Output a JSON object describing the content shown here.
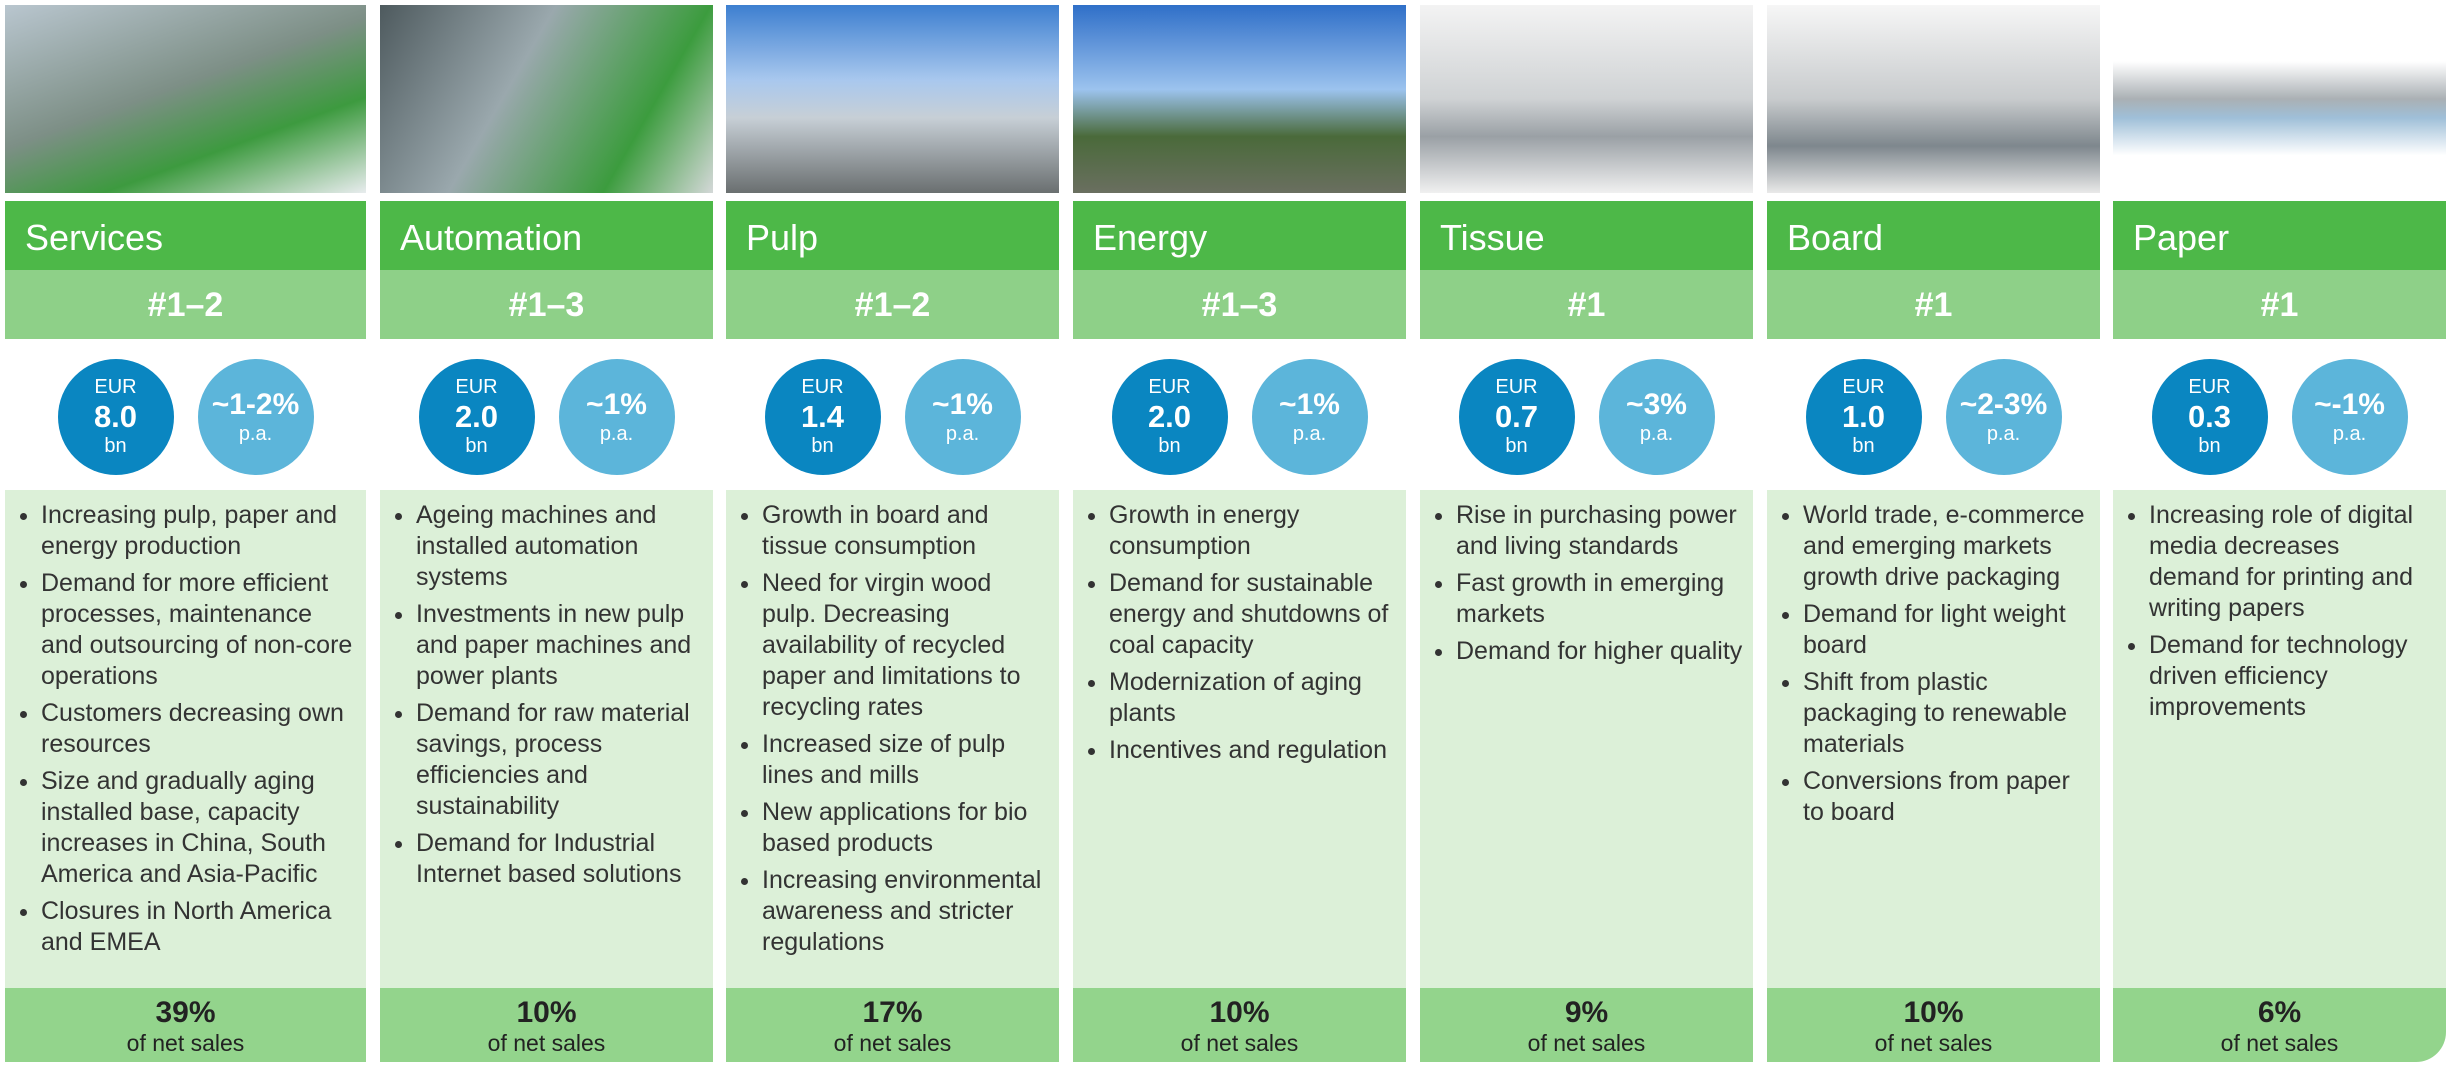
{
  "columns": [
    {
      "name": "Services",
      "rank": "#1–2",
      "currency": "EUR",
      "size": "8.0",
      "unit": "bn",
      "growth": "~1-2%",
      "growth_unit": "p.a.",
      "drivers": [
        "Increasing pulp, paper and energy production",
        "Demand for more efficient processes, maintenance and outsourcing of non-core operations",
        "Customers decreasing own resources",
        "Size and gradually aging installed base, capacity increases in China, South America and Asia-Pacific",
        "Closures in North America and EMEA"
      ],
      "share": "39%",
      "share_label": "of net sales"
    },
    {
      "name": "Automation",
      "rank": "#1–3",
      "currency": "EUR",
      "size": "2.0",
      "unit": "bn",
      "growth": "~1%",
      "growth_unit": "p.a.",
      "drivers": [
        "Ageing machines and installed automation systems",
        "Investments in new pulp and paper machines and power plants",
        "Demand for raw material savings, process efficiencies and sustainability",
        "Demand for Industrial Internet based solutions"
      ],
      "share": "10%",
      "share_label": "of net sales"
    },
    {
      "name": "Pulp",
      "rank": "#1–2",
      "currency": "EUR",
      "size": "1.4",
      "unit": "bn",
      "growth": "~1%",
      "growth_unit": "p.a.",
      "drivers": [
        "Growth in board and tissue consumption",
        "Need for virgin wood pulp. Decreasing availability of recycled paper and limitations to recycling rates",
        "Increased size of pulp lines and mills",
        "New applications for bio based products",
        "Increasing environmental awareness and stricter regulations"
      ],
      "share": "17%",
      "share_label": "of net sales"
    },
    {
      "name": "Energy",
      "rank": "#1–3",
      "currency": "EUR",
      "size": "2.0",
      "unit": "bn",
      "growth": "~1%",
      "growth_unit": "p.a.",
      "drivers": [
        "Growth in energy consumption",
        "Demand for sustainable energy and shutdowns of coal capacity",
        "Modernization of aging plants",
        "Incentives and regulation"
      ],
      "share": "10%",
      "share_label": "of net sales"
    },
    {
      "name": "Tissue",
      "rank": "#1",
      "currency": "EUR",
      "size": "0.7",
      "unit": "bn",
      "growth": "~3%",
      "growth_unit": "p.a.",
      "drivers": [
        "Rise in purchasing power and living standards",
        "Fast growth in emerging markets",
        "Demand for higher quality"
      ],
      "share": "9%",
      "share_label": "of net sales"
    },
    {
      "name": "Board",
      "rank": "#1",
      "currency": "EUR",
      "size": "1.0",
      "unit": "bn",
      "growth": "~2-3%",
      "growth_unit": "p.a.",
      "drivers": [
        "World trade, e-commerce and emerging markets growth drive packaging",
        "Demand for light weight board",
        "Shift from plastic packaging to renewable materials",
        "Conversions from paper to board"
      ],
      "share": "10%",
      "share_label": "of net sales"
    },
    {
      "name": "Paper",
      "rank": "#1",
      "currency": "EUR",
      "size": "0.3",
      "unit": "bn",
      "growth": "~-1%",
      "growth_unit": "p.a.",
      "drivers": [
        "Increasing role of digital media decreases demand for printing and writing papers",
        "Demand for technology driven efficiency improvements"
      ],
      "share": "6%",
      "share_label": "of net sales"
    }
  ]
}
